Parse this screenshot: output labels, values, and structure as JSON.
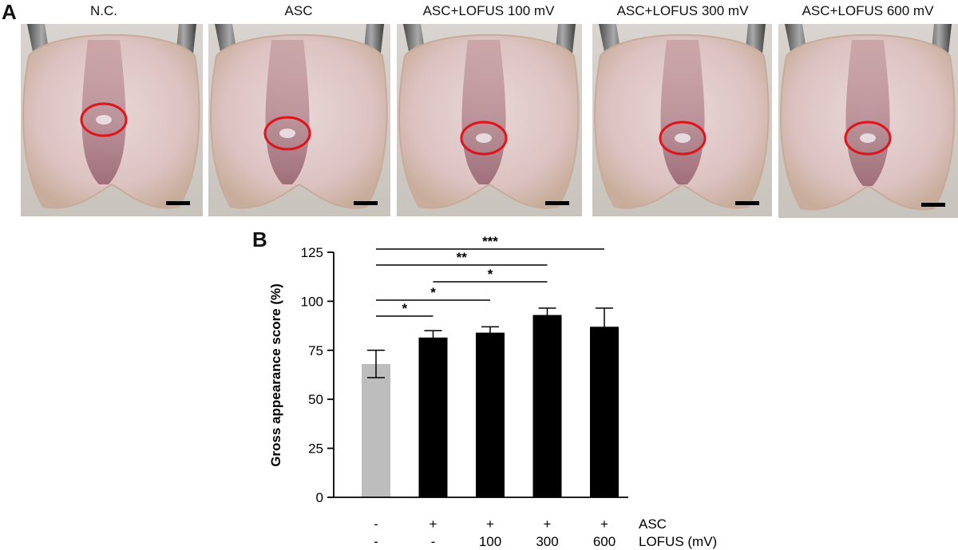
{
  "panel_a": {
    "label": "A",
    "images": [
      {
        "title": "N.C."
      },
      {
        "title": "ASC"
      },
      {
        "title": "ASC+LOFUS 100 mV"
      },
      {
        "title": "ASC+LOFUS 300 mV"
      },
      {
        "title": "ASC+LOFUS 600 mV"
      }
    ],
    "colors": {
      "tissue": "#e3cfcd",
      "groove": "#8f4f5d",
      "forceps": "#6b6b6b",
      "circle": "#e0141b",
      "scale_bar": "#000000"
    }
  },
  "chart_data": {
    "type": "bar",
    "panel_label": "B",
    "title": "",
    "ylabel": "Gross appearance score (%)",
    "xlabel": "",
    "ylim": [
      0,
      125
    ],
    "yticks": [
      0,
      25,
      50,
      75,
      100,
      125
    ],
    "categories": [
      "NC",
      "ASC",
      "ASC+100",
      "ASC+300",
      "ASC+600"
    ],
    "values": [
      68,
      81.5,
      84,
      93,
      87
    ],
    "errors": [
      7,
      3.5,
      3,
      3.5,
      9.5
    ],
    "bar_colors": [
      "#bdbdbd",
      "#000000",
      "#000000",
      "#000000",
      "#000000"
    ],
    "row_labels": [
      {
        "name": "ASC",
        "values": [
          "-",
          "+",
          "+",
          "+",
          "+"
        ]
      },
      {
        "name": "LOFUS (mV)",
        "values": [
          "-",
          "-",
          "100",
          "300",
          "600"
        ]
      }
    ],
    "significance": [
      {
        "from": 0,
        "to": 4,
        "label": "***"
      },
      {
        "from": 0,
        "to": 3,
        "label": "**"
      },
      {
        "from": 1,
        "to": 3,
        "label": "*"
      },
      {
        "from": 0,
        "to": 2,
        "label": "*"
      },
      {
        "from": 0,
        "to": 1,
        "label": "*"
      }
    ],
    "grid": false
  }
}
